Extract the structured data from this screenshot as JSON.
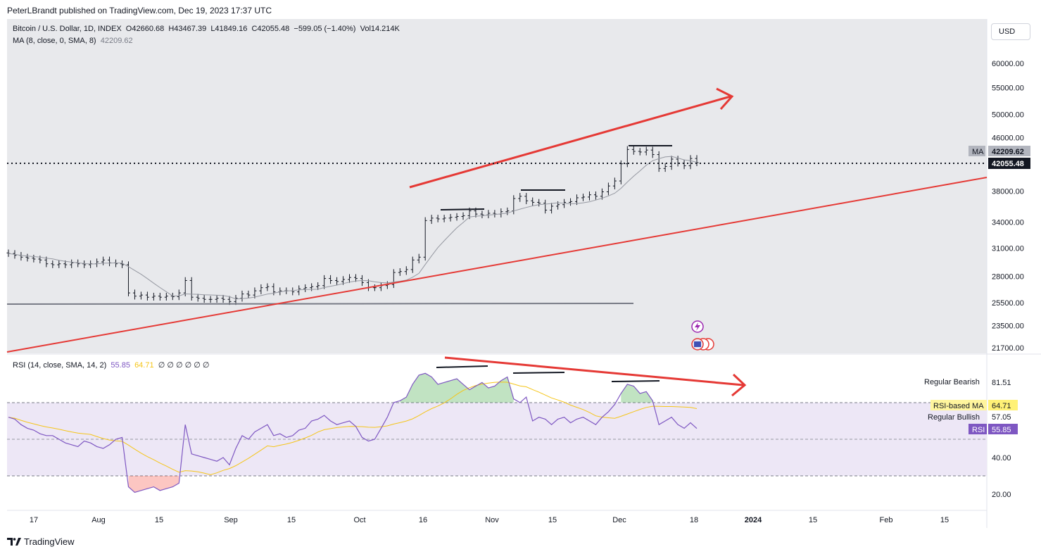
{
  "header": {
    "publisher_line": "PeterLBrandt published on TradingView.com, Dec 19, 2023 17:37 UTC"
  },
  "price_pane": {
    "symbol": "Bitcoin / U.S. Dollar, 1D, INDEX",
    "open": "O42660.68",
    "high": "H43467.39",
    "low": "L41849.16",
    "close": "C42055.48",
    "change": "−599.05 (−1.40%)",
    "volume": "Vol14.214K",
    "ma_label": "MA (8, close, 0, SMA, 8)",
    "ma_value": "42209.62",
    "currency_button": "USD",
    "ma_tag": "MA",
    "ma_price_label": "42209.62",
    "last_price_label": "42055.48"
  },
  "rsi_pane": {
    "label": "RSI (14, close, SMA, 14, 2)",
    "rsi_value": "55.85",
    "rsi_ma_value": "64.71",
    "extra_values": "∅ ∅ ∅ ∅ ∅ ∅",
    "regular_bearish": "Regular Bearish",
    "regular_bearish_value": "81.51",
    "rsi_ma_tag": "RSI-based MA",
    "rsi_ma_label": "64.71",
    "regular_bullish": "Regular Bullish",
    "regular_bullish_value": "57.05",
    "rsi_tag": "RSI",
    "rsi_label": "55.85"
  },
  "footer": {
    "brand": "TradingView"
  },
  "colors": {
    "trendline": "#e53935",
    "candle": "#131722",
    "ma_line": "#9598a1",
    "rsi_line": "#7e57c2",
    "rsi_ma_line": "#f5c518",
    "rsi_band": "#ede7f6",
    "pane_bg": "#e8e9ec"
  },
  "chart_data": {
    "type": "candlestick",
    "x_ticks": [
      "17",
      "Aug",
      "15",
      "Sep",
      "15",
      "Oct",
      "16",
      "Nov",
      "15",
      "Dec",
      "18",
      "2024",
      "15",
      "Feb",
      "15"
    ],
    "price_axis_ticks": [
      60000,
      55000,
      50000,
      46000,
      38000,
      34000,
      31000,
      28000,
      25500,
      23500,
      21700
    ],
    "price_scale": "log",
    "rsi_axis_ticks": [
      81.51,
      57.05,
      40,
      20
    ],
    "rsi_levels": {
      "upper": 70,
      "middle": 50,
      "lower": 30
    },
    "price_series": {
      "name": "Bitcoin / U.S. Dollar",
      "approx_closes": [
        30400,
        30200,
        30000,
        29900,
        29800,
        29700,
        29300,
        29200,
        29300,
        29200,
        29400,
        29300,
        29200,
        29300,
        29500,
        29700,
        29400,
        29300,
        29200,
        26400,
        26100,
        26200,
        26000,
        26100,
        26000,
        26100,
        26050,
        26400,
        27600,
        26000,
        25900,
        25800,
        25800,
        25900,
        25800,
        25600,
        25900,
        26300,
        26200,
        26600,
        26900,
        27000,
        26500,
        26600,
        26600,
        26500,
        26800,
        26900,
        27000,
        27100,
        27800,
        27600,
        27500,
        27700,
        27900,
        27800,
        27400,
        26900,
        26900,
        27100,
        27200,
        28400,
        28500,
        28700,
        29700,
        30000,
        34200,
        34500,
        34400,
        34500,
        34600,
        34700,
        34800,
        35400,
        35000,
        34900,
        35100,
        35000,
        35300,
        35400,
        37000,
        37300,
        36700,
        36500,
        36400,
        35500,
        36000,
        36200,
        36500,
        36600,
        37100,
        37200,
        37500,
        37300,
        37900,
        38700,
        39400,
        41900,
        44100,
        43800,
        43700,
        44000,
        43300,
        41200,
        41500,
        42600,
        42000,
        41600,
        42700,
        42055
      ]
    },
    "ma_series": {
      "name": "MA (8, close, 0, SMA, 8)",
      "last": 42209.62
    },
    "rsi_series": {
      "name": "RSI",
      "approx_values": [
        62,
        61,
        58,
        56,
        55,
        53,
        52,
        52,
        50,
        48,
        47,
        46,
        49,
        48,
        46,
        45,
        47,
        50,
        51,
        24,
        21,
        22,
        23,
        24,
        22,
        23,
        24,
        26,
        58,
        42,
        41,
        40,
        39,
        38,
        40,
        36,
        45,
        52,
        50,
        54,
        56,
        58,
        52,
        53,
        51,
        52,
        55,
        56,
        60,
        61,
        63,
        60,
        58,
        59,
        60,
        57,
        51,
        49,
        50,
        56,
        62,
        70,
        71,
        73,
        80,
        85,
        86,
        84,
        80,
        81,
        82,
        83,
        80,
        77,
        79,
        81,
        78,
        79,
        82,
        84,
        72,
        70,
        73,
        60,
        62,
        61,
        58,
        61,
        62,
        59,
        61,
        62,
        60,
        58,
        62,
        65,
        69,
        75,
        80,
        79,
        75,
        76,
        71,
        58,
        60,
        62,
        58,
        56,
        59,
        55.85
      ]
    },
    "rsi_ma_last": 64.71,
    "annotations": [
      "Regular Bearish",
      "Regular Bullish"
    ]
  }
}
